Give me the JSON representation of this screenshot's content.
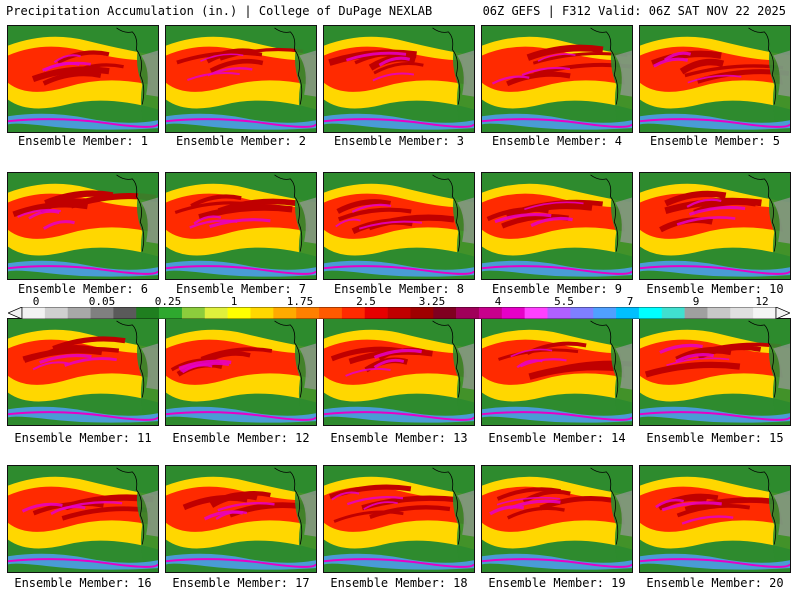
{
  "header": {
    "title": "Precipitation Accumulation (in.) | College of DuPage NEXLAB",
    "run_info": "06Z GEFS | F312 Valid: 06Z SAT NOV 22 2025"
  },
  "members": [
    {
      "label": "Ensemble Member: 1"
    },
    {
      "label": "Ensemble Member: 2"
    },
    {
      "label": "Ensemble Member: 3"
    },
    {
      "label": "Ensemble Member: 4"
    },
    {
      "label": "Ensemble Member: 5"
    },
    {
      "label": "Ensemble Member: 6"
    },
    {
      "label": "Ensemble Member: 7"
    },
    {
      "label": "Ensemble Member: 8"
    },
    {
      "label": "Ensemble Member: 9"
    },
    {
      "label": "Ensemble Member: 10"
    },
    {
      "label": "Ensemble Member: 11"
    },
    {
      "label": "Ensemble Member: 12"
    },
    {
      "label": "Ensemble Member: 13"
    },
    {
      "label": "Ensemble Member: 14"
    },
    {
      "label": "Ensemble Member: 15"
    },
    {
      "label": "Ensemble Member: 16"
    },
    {
      "label": "Ensemble Member: 17"
    },
    {
      "label": "Ensemble Member: 18"
    },
    {
      "label": "Ensemble Member: 19"
    },
    {
      "label": "Ensemble Member: 20"
    }
  ],
  "colorbar": {
    "labels": [
      "0",
      "0.05",
      "0.25",
      "1",
      "1.75",
      "2.5",
      "3.25",
      "4",
      "5.5",
      "7",
      "9",
      "12"
    ],
    "colors": [
      "#f2f2f2",
      "#d0d0d0",
      "#a8a8a8",
      "#808080",
      "#5a5a5a",
      "#1f7f1f",
      "#2ea82e",
      "#8ccd3c",
      "#dff03c",
      "#ffff00",
      "#ffd700",
      "#ffaa00",
      "#ff8000",
      "#ff5a00",
      "#ff2a00",
      "#e60000",
      "#c00000",
      "#a00000",
      "#800020",
      "#a0005a",
      "#c8008c",
      "#e600c8",
      "#ff40ff",
      "#b060ff",
      "#7f7fff",
      "#50a0ff",
      "#00c0ff",
      "#00ffff",
      "#40e0d0",
      "#a0a0a0",
      "#c8c8c8",
      "#e0e0e0",
      "#f5f5f5"
    ]
  },
  "map_colors": {
    "ocean": "#2e8b2e",
    "moderate": "#ffd700",
    "heavy": "#ff2a00",
    "extreme": "#c00000",
    "peak": "#e600c8",
    "tropical": "#50a0ff",
    "land": "#9a9a9a"
  }
}
